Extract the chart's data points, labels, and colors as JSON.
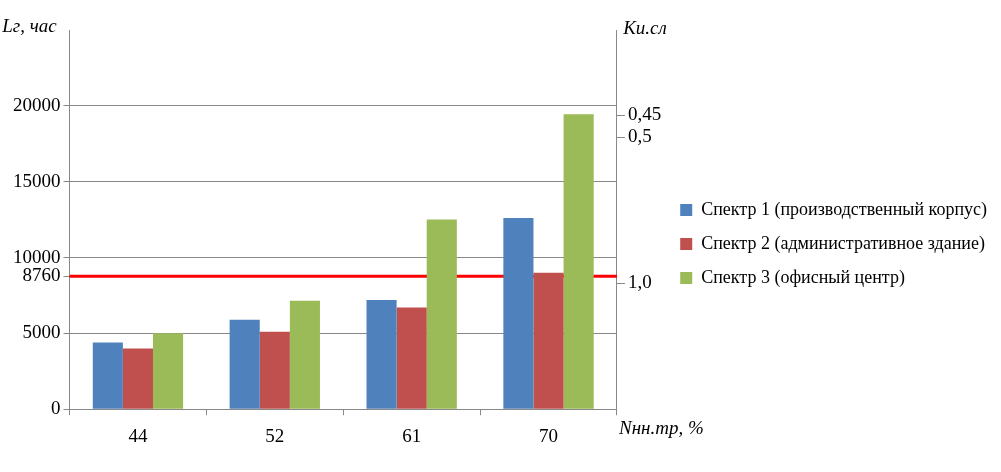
{
  "chart_data": {
    "type": "bar",
    "categories": [
      "44",
      "52",
      "61",
      "70"
    ],
    "series": [
      {
        "name": "Спектр 1 (производственный корпус)",
        "color": "#4f81bd",
        "values": [
          4400,
          5900,
          7200,
          12600
        ]
      },
      {
        "name": "Спектр 2 (административное здание)",
        "color": "#c0504d",
        "values": [
          4000,
          5100,
          6700,
          9000
        ]
      },
      {
        "name": "Спектр 3 (офисный центр)",
        "color": "#9bbb59",
        "values": [
          5000,
          7150,
          12500,
          19450
        ]
      }
    ],
    "ylabel": "Lг, час",
    "y2label": "Ки.сл",
    "xlabel": "Nнн.тр, %",
    "ylim": [
      0,
      25000
    ],
    "yticks": [
      0,
      5000,
      {
        "value": 8760,
        "label": "8760"
      },
      10000,
      15000,
      20000
    ],
    "y2lim": [
      1.82,
      0.3
    ],
    "y2ticks": [
      {
        "value": 0.45,
        "label": "0,45"
      },
      {
        "value": 0.5,
        "label": "0,5"
      },
      {
        "value": 1.0,
        "label": "1,0"
      }
    ],
    "log": "y2",
    "ref_lines": [
      {
        "axis": "y",
        "value": 8760,
        "color": "#ff0000"
      }
    ],
    "grid": "y",
    "legend": "right"
  }
}
